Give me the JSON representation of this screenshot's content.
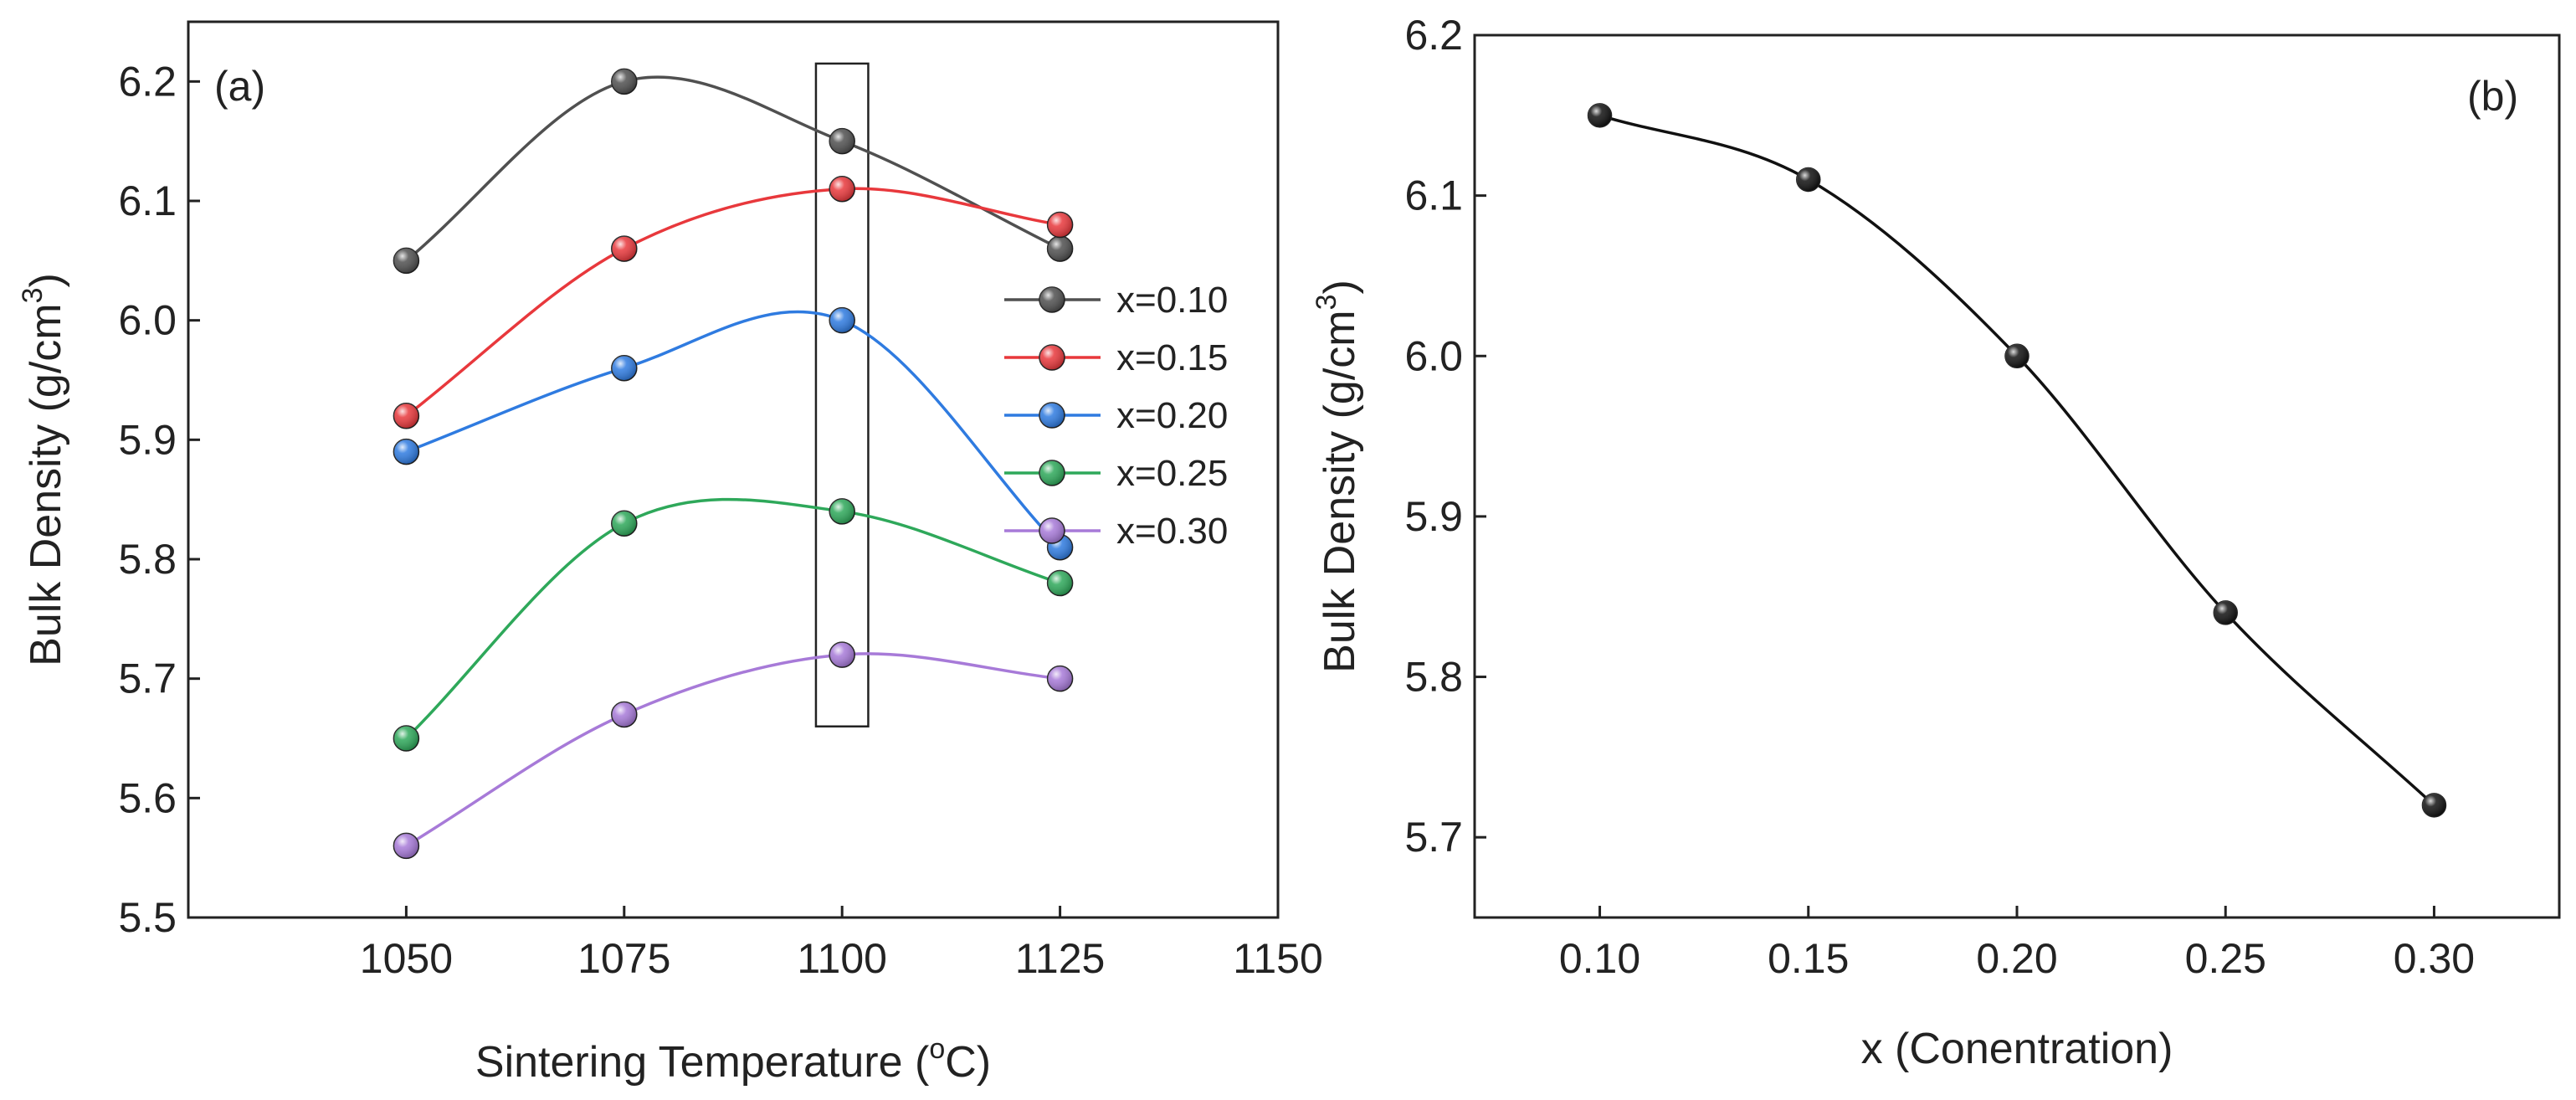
{
  "chart_data": [
    {
      "panel_label": "(a)",
      "type": "line",
      "xlabel_main": "Sintering Temperature (",
      "xlabel_sup": "o",
      "xlabel_end": "C)",
      "ylabel_main": "Bulk Density (g/cm",
      "ylabel_sup": "3",
      "ylabel_end": ")",
      "xlim": [
        1025,
        1150
      ],
      "ylim": [
        5.5,
        6.25
      ],
      "xticks": [
        1050,
        1075,
        1100,
        1125,
        1150
      ],
      "xtick_labels": [
        "1050",
        "1075",
        "1100",
        "1125",
        "1150"
      ],
      "yticks": [
        5.5,
        5.6,
        5.7,
        5.8,
        5.9,
        6.0,
        6.1,
        6.2
      ],
      "ytick_labels": [
        "5.5",
        "5.6",
        "5.7",
        "5.8",
        "5.9",
        "6.0",
        "6.1",
        "6.2"
      ],
      "x": [
        1050,
        1075,
        1100,
        1125
      ],
      "series": [
        {
          "name": "x=0.10",
          "color": "#505050",
          "values": [
            6.05,
            6.2,
            6.15,
            6.06
          ]
        },
        {
          "name": "x=0.15",
          "color": "#e8383c",
          "values": [
            5.92,
            6.06,
            6.11,
            6.08
          ]
        },
        {
          "name": "x=0.20",
          "color": "#2f7be0",
          "values": [
            5.89,
            5.96,
            6.0,
            5.81
          ]
        },
        {
          "name": "x=0.25",
          "color": "#2ea85a",
          "values": [
            5.65,
            5.83,
            5.84,
            5.78
          ]
        },
        {
          "name": "x=0.30",
          "color": "#a77ad8",
          "values": [
            5.56,
            5.67,
            5.72,
            5.7
          ]
        }
      ],
      "highlight_box": {
        "x_range": [
          1097,
          1103
        ],
        "y_range": [
          5.66,
          6.215
        ]
      },
      "legend_position": "center-right"
    },
    {
      "panel_label": "(b)",
      "type": "line",
      "xlabel": "x (Conentration)",
      "ylabel_main": "Bulk Density (g/cm",
      "ylabel_sup": "3",
      "ylabel_end": ")",
      "xlim": [
        0.07,
        0.33
      ],
      "ylim": [
        5.65,
        6.2
      ],
      "xticks": [
        0.1,
        0.15,
        0.2,
        0.25,
        0.3
      ],
      "xtick_labels": [
        "0.10",
        "0.15",
        "0.20",
        "0.25",
        "0.30"
      ],
      "yticks": [
        5.7,
        5.8,
        5.9,
        6.0,
        6.1,
        6.2
      ],
      "ytick_labels": [
        "5.7",
        "5.8",
        "5.9",
        "6.0",
        "6.1",
        "6.2"
      ],
      "x": [
        0.1,
        0.15,
        0.2,
        0.25,
        0.3
      ],
      "series": [
        {
          "name": "bulk-density",
          "color": "#111111",
          "values": [
            6.15,
            6.11,
            6.0,
            5.84,
            5.72
          ]
        }
      ]
    }
  ]
}
